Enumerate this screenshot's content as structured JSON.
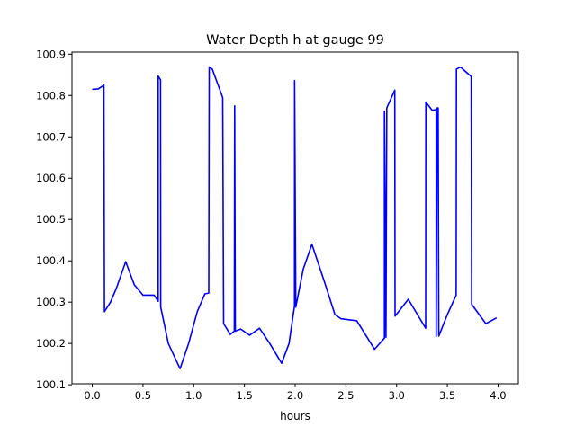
{
  "chart_data": {
    "type": "line",
    "title": "Water Depth h at gauge 99",
    "xlabel": "hours",
    "ylabel": "",
    "xlim": [
      -0.2,
      4.2
    ],
    "ylim": [
      100.1025,
      100.905
    ],
    "xticks": [
      0.0,
      0.5,
      1.0,
      1.5,
      2.0,
      2.5,
      3.0,
      3.5,
      4.0
    ],
    "xtick_labels": [
      "0.0",
      "0.5",
      "1.0",
      "1.5",
      "2.0",
      "2.5",
      "3.0",
      "3.5",
      "4.0"
    ],
    "yticks": [
      100.1,
      100.2,
      100.3,
      100.4,
      100.5,
      100.6,
      100.7,
      100.8,
      100.9
    ],
    "ytick_labels": [
      "100.1",
      "100.2",
      "100.3",
      "100.4",
      "100.5",
      "100.6",
      "100.7",
      "100.8",
      "100.9"
    ],
    "grid": false,
    "series": [
      {
        "name": "h",
        "color": "#0000ff",
        "x": [
          0.0,
          0.06,
          0.115,
          0.12,
          0.18,
          0.24,
          0.33,
          0.415,
          0.5,
          0.61,
          0.65,
          0.65,
          0.673,
          0.675,
          0.75,
          0.865,
          0.95,
          1.035,
          1.11,
          1.148,
          1.153,
          1.183,
          1.286,
          1.295,
          1.36,
          1.4,
          1.404,
          1.41,
          1.463,
          1.551,
          1.649,
          1.75,
          1.867,
          1.94,
          1.994,
          1.995,
          2.006,
          2.08,
          2.165,
          2.289,
          2.392,
          2.451,
          2.608,
          2.782,
          2.88,
          2.88,
          2.895,
          2.903,
          2.982,
          2.985,
          3.115,
          3.286,
          3.288,
          3.351,
          3.39,
          3.39,
          3.4,
          3.41,
          3.416,
          3.5,
          3.587,
          3.59,
          3.63,
          3.735,
          3.74,
          3.88,
          3.985
        ],
        "y": [
          100.815,
          100.816,
          100.825,
          100.277,
          100.3,
          100.335,
          100.398,
          100.342,
          100.317,
          100.317,
          100.302,
          100.847,
          100.838,
          100.288,
          100.2,
          100.139,
          100.2,
          100.277,
          100.32,
          100.322,
          100.869,
          100.864,
          100.795,
          100.248,
          100.222,
          100.23,
          100.775,
          100.23,
          100.235,
          100.22,
          100.237,
          100.2,
          100.152,
          100.2,
          100.291,
          100.836,
          100.288,
          100.38,
          100.44,
          100.349,
          100.27,
          100.26,
          100.255,
          100.186,
          100.213,
          100.762,
          100.215,
          100.77,
          100.813,
          100.266,
          100.307,
          100.237,
          100.784,
          100.764,
          100.766,
          100.217,
          100.77,
          100.77,
          100.218,
          100.27,
          100.317,
          100.864,
          100.869,
          100.846,
          100.295,
          100.248,
          100.262
        ]
      }
    ]
  }
}
